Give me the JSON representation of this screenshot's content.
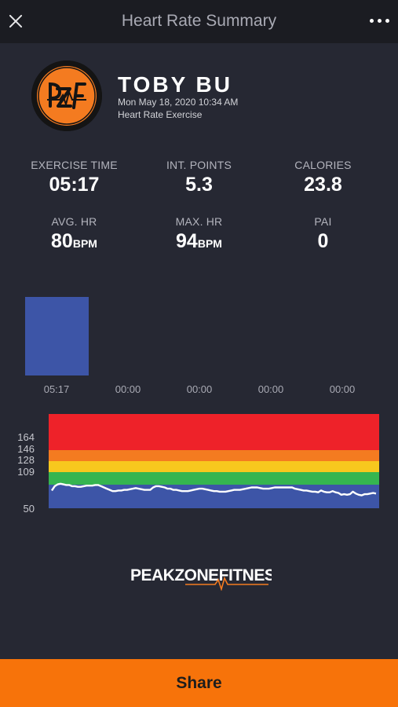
{
  "header": {
    "title": "Heart Rate Summary"
  },
  "profile": {
    "name": "TOBY BU",
    "datetime": "Mon May 18, 2020 10:34 AM",
    "exercise_type": "Heart Rate Exercise",
    "avatar_icon": "pzf-logo-icon"
  },
  "stats": {
    "exercise_time": {
      "label": "EXERCISE TIME",
      "value": "05:17"
    },
    "int_points": {
      "label": "INT. POINTS",
      "value": "5.3"
    },
    "calories": {
      "label": "CALORIES",
      "value": "23.8"
    },
    "avg_hr": {
      "label": "AVG. HR",
      "value": "80",
      "unit": "BPM"
    },
    "max_hr": {
      "label": "MAX. HR",
      "value": "94",
      "unit": "BPM"
    },
    "pai": {
      "label": "PAI",
      "value": "0"
    }
  },
  "chart_data": [
    {
      "type": "bar",
      "categories": [
        "05:17",
        "00:00",
        "00:00",
        "00:00",
        "00:00"
      ],
      "values": [
        5.28,
        0,
        0,
        0,
        0
      ],
      "ylim": [
        0,
        5.28
      ],
      "color": "#3d55a7"
    },
    {
      "type": "line",
      "y_ticks": [
        "164",
        "146",
        "128",
        "109",
        "50"
      ],
      "zones": [
        {
          "from": 50,
          "to": 109,
          "color": "#3d55a7"
        },
        {
          "from": 109,
          "to": 128,
          "color": "#35b550"
        },
        {
          "from": 128,
          "to": 146,
          "color": "#f7c81e"
        },
        {
          "from": 146,
          "to": 164,
          "color": "#f47b20"
        },
        {
          "from": 164,
          "to": 200,
          "color": "#ee2229"
        }
      ],
      "ylim": [
        50,
        200
      ],
      "series": [
        {
          "color": "#ffffff",
          "values": [
            79,
            86,
            89,
            90,
            89,
            88,
            88,
            86,
            86,
            85,
            85,
            86,
            87,
            87,
            87,
            88,
            88,
            86,
            84,
            82,
            80,
            78,
            78,
            79,
            79,
            80,
            80,
            81,
            82,
            83,
            82,
            81,
            80,
            80,
            80,
            84,
            86,
            86,
            85,
            84,
            82,
            82,
            80,
            80,
            79,
            78,
            78,
            78,
            79,
            80,
            81,
            82,
            82,
            81,
            80,
            79,
            78,
            78,
            77,
            77,
            77,
            78,
            79,
            80,
            80,
            80,
            81,
            82,
            83,
            84,
            84,
            84,
            83,
            82,
            82,
            82,
            83,
            84,
            84,
            84,
            84,
            84,
            84,
            84,
            82,
            81,
            80,
            79,
            79,
            78,
            77,
            77,
            76,
            79,
            77,
            76,
            76,
            78,
            76,
            75,
            72,
            73,
            72,
            73,
            77,
            74,
            72,
            71,
            73,
            73,
            74,
            75,
            74
          ]
        }
      ]
    }
  ],
  "branding": {
    "logo_text": "PEAKZONEFITNESS"
  },
  "footer": {
    "share_label": "Share"
  }
}
